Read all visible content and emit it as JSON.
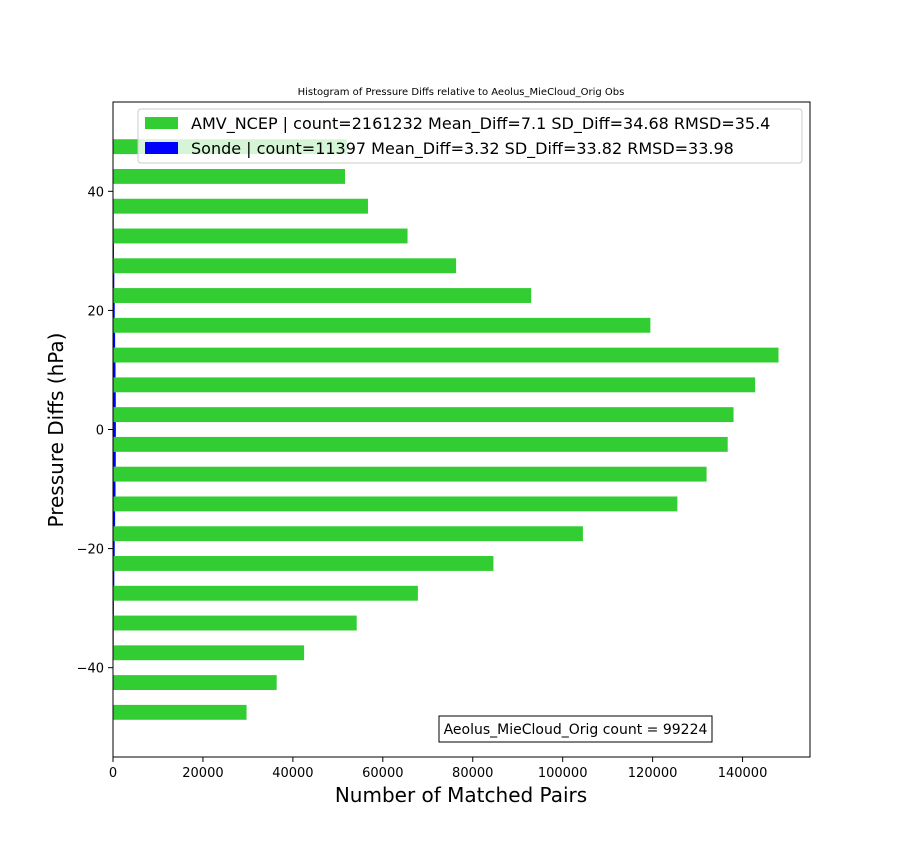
{
  "chart_data": {
    "type": "bar",
    "orientation": "horizontal",
    "title": "Histogram of Pressure Diffs relative to Aeolus_MieCloud_Orig Obs",
    "xlabel": "Number of Matched Pairs",
    "ylabel": "Pressure Diffs (hPa)",
    "xlim": [
      0,
      155000
    ],
    "ylim": [
      -55,
      55
    ],
    "xticks": [
      0,
      20000,
      40000,
      60000,
      80000,
      100000,
      120000,
      140000
    ],
    "xtick_labels": [
      "0",
      "20000",
      "40000",
      "60000",
      "80000",
      "100000",
      "120000",
      "140000"
    ],
    "yticks": [
      -40,
      -20,
      0,
      20,
      40
    ],
    "ytick_labels": [
      "−40",
      "−20",
      "0",
      "20",
      "40"
    ],
    "grid": false,
    "legend_position": "upper-right",
    "bin_centers": [
      -48.75,
      -43.75,
      -38.75,
      -33.75,
      -28.75,
      -23.75,
      -18.75,
      -13.75,
      -8.75,
      -3.75,
      1.25,
      6.25,
      11.25,
      16.25,
      21.25,
      26.25,
      31.25,
      36.25,
      41.25,
      46.25
    ],
    "series": [
      {
        "name": "AMV_NCEP | count=2161232 Mean_Diff=7.1 SD_Diff=34.68 RMSD=35.4",
        "color": "#32cd32",
        "values": [
          29700,
          36400,
          42500,
          54200,
          67800,
          84600,
          104500,
          125500,
          132000,
          136700,
          138000,
          142800,
          148000,
          119500,
          93000,
          76300,
          65500,
          56700,
          51600,
          52000
        ]
      },
      {
        "name": "Sonde | count=11397 Mean_Diff=3.32 SD_Diff=33.82 RMSD=33.98",
        "color": "#0000ff",
        "values": [
          60,
          90,
          110,
          160,
          200,
          290,
          380,
          470,
          560,
          620,
          640,
          620,
          560,
          470,
          380,
          290,
          210,
          160,
          110,
          80
        ]
      }
    ],
    "annotation": "Aeolus_MieCloud_Orig count = 99224"
  }
}
